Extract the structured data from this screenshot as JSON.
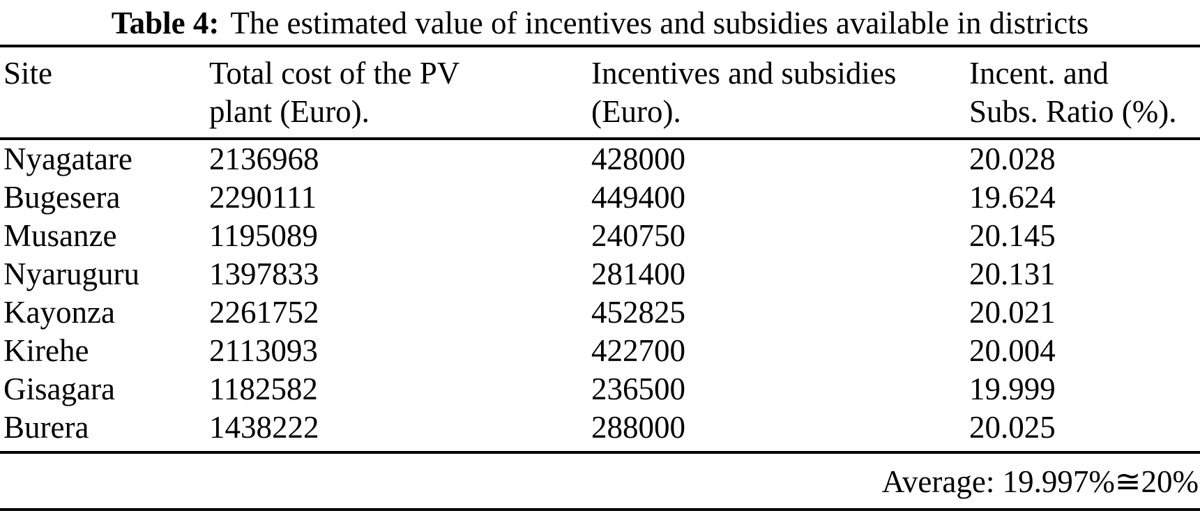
{
  "caption": {
    "label": "Table 4:",
    "text": "The estimated value of incentives and subsidies available in districts"
  },
  "table": {
    "columns": [
      {
        "id": "site",
        "lines": [
          "Site",
          ""
        ]
      },
      {
        "id": "total_cost",
        "lines": [
          "Total cost of the PV",
          "plant (Euro)."
        ]
      },
      {
        "id": "incentives",
        "lines": [
          "Incentives and subsidies",
          "(Euro)."
        ]
      },
      {
        "id": "ratio",
        "lines": [
          "Incent. and",
          "Subs. Ratio (%)."
        ]
      }
    ],
    "rows": [
      {
        "site": "Nyagatare",
        "total_cost": "2136968",
        "incentives": "428000",
        "ratio": "20.028"
      },
      {
        "site": "Bugesera",
        "total_cost": "2290111",
        "incentives": "449400",
        "ratio": "19.624"
      },
      {
        "site": "Musanze",
        "total_cost": "1195089",
        "incentives": "240750",
        "ratio": "20.145"
      },
      {
        "site": "Nyaruguru",
        "total_cost": "1397833",
        "incentives": "281400",
        "ratio": "20.131"
      },
      {
        "site": "Kayonza",
        "total_cost": "2261752",
        "incentives": "452825",
        "ratio": "20.021"
      },
      {
        "site": "Kirehe",
        "total_cost": "2113093",
        "incentives": "422700",
        "ratio": "20.004"
      },
      {
        "site": "Gisagara",
        "total_cost": "1182582",
        "incentives": "236500",
        "ratio": "19.999"
      },
      {
        "site": "Burera",
        "total_cost": "1438222",
        "incentives": "288000",
        "ratio": "20.025"
      }
    ],
    "footer": {
      "average_text": "Average: 19.997%≅20%"
    }
  }
}
